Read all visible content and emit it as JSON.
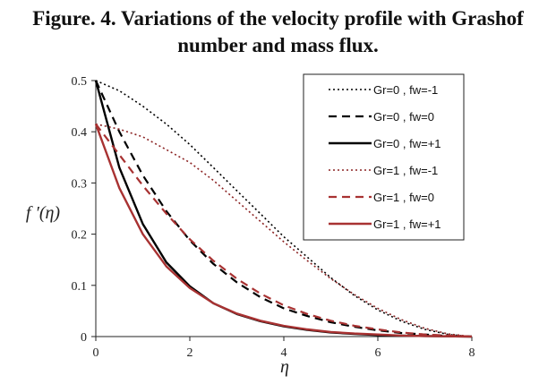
{
  "chart_data": {
    "type": "line",
    "title_line1": "Figure. 4. Variations of the velocity profile with Grashof",
    "title_line2": "number and mass flux.",
    "xlabel": "η",
    "ylabel": "f ′(η)",
    "xlim": [
      0,
      8
    ],
    "ylim": [
      0,
      0.5
    ],
    "xticks": [
      "0",
      "2",
      "4",
      "6",
      "8"
    ],
    "yticks": [
      "0",
      "0.1",
      "0.2",
      "0.3",
      "0.4",
      "0.5"
    ],
    "grid": false,
    "legend_position": "top-right",
    "x": [
      0,
      0.5,
      1,
      1.5,
      2,
      2.5,
      3,
      3.5,
      4,
      4.5,
      5,
      5.5,
      6,
      6.5,
      7,
      7.5,
      8
    ],
    "series": [
      {
        "name": "Gr=0 , fw=-1",
        "color": "#000000",
        "style": "dotted",
        "values": [
          0.5,
          0.48,
          0.45,
          0.415,
          0.375,
          0.33,
          0.285,
          0.24,
          0.195,
          0.155,
          0.115,
          0.08,
          0.052,
          0.03,
          0.014,
          0.004,
          0
        ]
      },
      {
        "name": "Gr=0 , fw=0",
        "color": "#000000",
        "style": "dashed",
        "values": [
          0.5,
          0.4,
          0.315,
          0.245,
          0.188,
          0.142,
          0.106,
          0.077,
          0.055,
          0.04,
          0.028,
          0.019,
          0.012,
          0.007,
          0.004,
          0.001,
          0
        ]
      },
      {
        "name": "Gr=0 , fw=+1",
        "color": "#000000",
        "style": "solid",
        "values": [
          0.5,
          0.33,
          0.22,
          0.145,
          0.098,
          0.065,
          0.044,
          0.03,
          0.02,
          0.013,
          0.008,
          0.005,
          0.003,
          0.002,
          0.001,
          0.0005,
          0
        ]
      },
      {
        "name": "Gr=1 , fw=-1",
        "color": "#8b2323",
        "style": "dotted",
        "values": [
          0.415,
          0.405,
          0.39,
          0.365,
          0.34,
          0.305,
          0.265,
          0.225,
          0.185,
          0.148,
          0.113,
          0.082,
          0.055,
          0.033,
          0.016,
          0.005,
          0
        ]
      },
      {
        "name": "Gr=1 , fw=0",
        "color": "#a83232",
        "style": "dashed",
        "values": [
          0.415,
          0.355,
          0.295,
          0.24,
          0.19,
          0.148,
          0.113,
          0.084,
          0.061,
          0.044,
          0.031,
          0.021,
          0.014,
          0.008,
          0.004,
          0.002,
          0
        ]
      },
      {
        "name": "Gr=1 , fw=+1",
        "color": "#a83232",
        "style": "solid",
        "values": [
          0.415,
          0.29,
          0.2,
          0.137,
          0.095,
          0.065,
          0.045,
          0.031,
          0.021,
          0.014,
          0.009,
          0.006,
          0.004,
          0.002,
          0.001,
          0.0005,
          0
        ]
      }
    ]
  }
}
